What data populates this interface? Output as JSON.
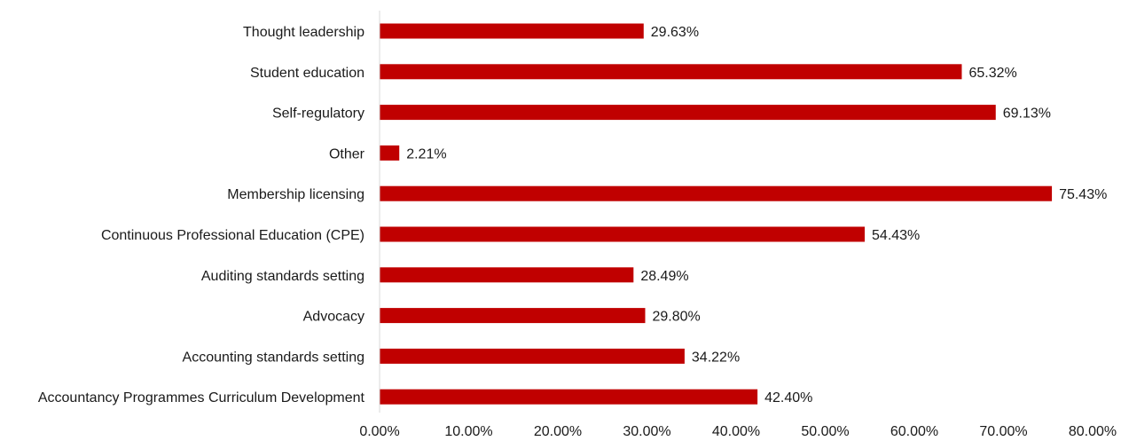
{
  "chart_data": {
    "type": "bar",
    "orientation": "horizontal",
    "categories": [
      "Thought leadership",
      "Student education",
      "Self-regulatory",
      "Other",
      "Membership licensing",
      "Continuous Professional Education (CPE)",
      "Auditing standards setting",
      "Advocacy",
      "Accounting standards setting",
      "Accountancy Programmes Curriculum Development"
    ],
    "values": [
      29.63,
      65.32,
      69.13,
      2.21,
      75.43,
      54.43,
      28.49,
      29.8,
      34.22,
      42.4
    ],
    "value_labels": [
      "29.63%",
      "65.32%",
      "69.13%",
      "2.21%",
      "75.43%",
      "54.43%",
      "28.49%",
      "29.80%",
      "34.22%",
      "42.40%"
    ],
    "xlim": [
      0,
      80
    ],
    "xticks": [
      0,
      10,
      20,
      30,
      40,
      50,
      60,
      70,
      80
    ],
    "xtick_labels": [
      "0.00%",
      "10.00%",
      "20.00%",
      "30.00%",
      "40.00%",
      "50.00%",
      "60.00%",
      "70.00%",
      "80.00%"
    ],
    "grid": false,
    "legend": "none",
    "bar_color": "#c00000",
    "axis_color": "#d9d9d9"
  }
}
